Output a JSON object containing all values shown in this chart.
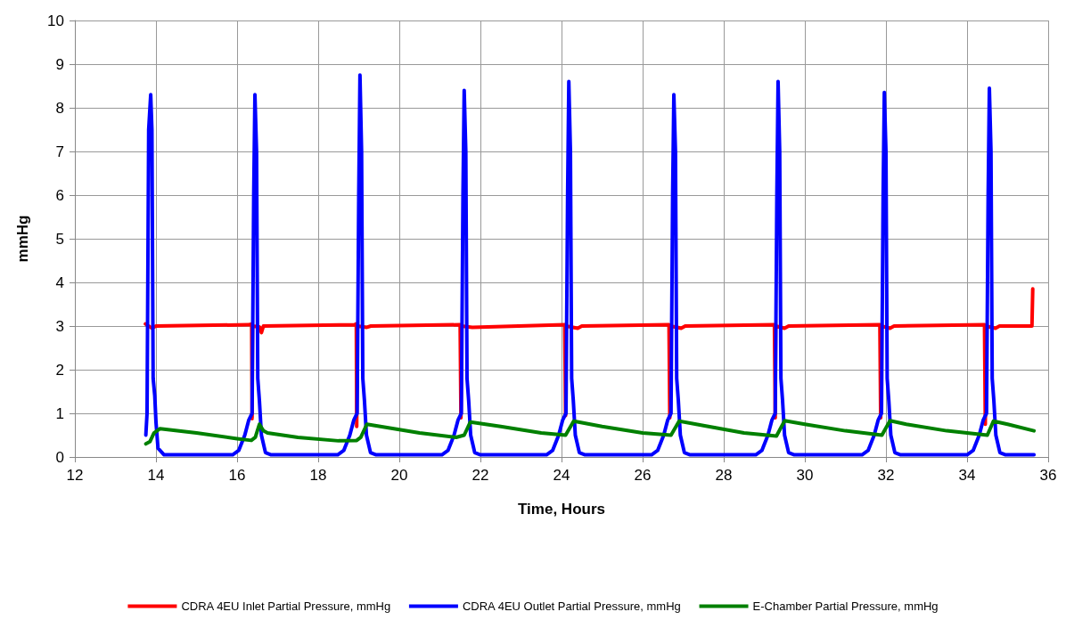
{
  "chart_data": {
    "type": "line",
    "xlabel": "Time, Hours",
    "ylabel": "mmHg",
    "xlim": [
      12,
      36
    ],
    "xticks": [
      12,
      14,
      16,
      18,
      20,
      22,
      24,
      26,
      28,
      30,
      32,
      34,
      36
    ],
    "ylim": [
      0,
      10
    ],
    "yticks": [
      0,
      1,
      2,
      3,
      4,
      5,
      6,
      7,
      8,
      9,
      10
    ],
    "grid": true,
    "legend": "bottom",
    "marker": "none",
    "line_style": "solid",
    "series": [
      {
        "name": "CDRA 4EU Inlet Partial Pressure, mmHg",
        "color": "#ff0000",
        "x": [
          13.74,
          13.9,
          14.0,
          16.3,
          16.36,
          16.37,
          16.38,
          16.55,
          16.6,
          16.65,
          18.9,
          18.94,
          18.95,
          18.96,
          19.2,
          19.3,
          21.5,
          21.52,
          21.53,
          21.8,
          24.08,
          24.1,
          24.11,
          24.4,
          24.5,
          26.65,
          26.67,
          26.68,
          26.95,
          27.05,
          29.25,
          29.27,
          29.28,
          29.5,
          29.6,
          31.85,
          31.87,
          31.88,
          32.1,
          32.2,
          34.43,
          34.45,
          34.46,
          34.7,
          34.8,
          35.6,
          35.62
        ],
        "values": [
          3.05,
          2.95,
          3.0,
          3.03,
          3.05,
          0.88,
          3.0,
          2.98,
          2.85,
          3.0,
          3.03,
          3.05,
          0.7,
          3.0,
          2.97,
          3.0,
          3.03,
          0.9,
          3.0,
          2.97,
          3.03,
          0.95,
          3.0,
          2.95,
          3.0,
          3.03,
          0.9,
          3.0,
          2.95,
          3.0,
          3.03,
          0.9,
          3.0,
          2.95,
          3.0,
          3.03,
          0.9,
          3.0,
          2.95,
          3.0,
          3.03,
          0.75,
          3.0,
          2.95,
          3.0,
          3.0,
          3.85
        ]
      },
      {
        "name": "CDRA 4EU Outlet Partial Pressure, mmHg",
        "color": "#0000ff",
        "x": [
          13.75,
          13.78,
          13.82,
          13.87,
          13.9,
          13.93,
          13.97,
          14.0,
          14.05,
          14.2,
          15.89,
          16.04,
          16.19,
          16.29,
          16.37,
          16.41,
          16.44,
          16.48,
          16.51,
          16.55,
          16.6,
          16.7,
          16.84,
          18.48,
          18.63,
          18.78,
          18.88,
          18.96,
          19.0,
          19.03,
          19.07,
          19.1,
          19.14,
          19.19,
          19.29,
          19.43,
          21.05,
          21.2,
          21.35,
          21.45,
          21.53,
          21.57,
          21.6,
          21.64,
          21.67,
          21.71,
          21.76,
          21.86,
          22.0,
          23.63,
          23.78,
          23.93,
          24.03,
          24.11,
          24.15,
          24.18,
          24.22,
          24.25,
          24.29,
          24.34,
          24.44,
          24.58,
          26.22,
          26.37,
          26.52,
          26.62,
          26.7,
          26.74,
          26.77,
          26.81,
          26.84,
          26.88,
          26.93,
          27.03,
          27.17,
          28.79,
          28.94,
          29.09,
          29.19,
          29.27,
          29.31,
          29.34,
          29.38,
          29.41,
          29.45,
          29.5,
          29.6,
          29.74,
          31.41,
          31.56,
          31.71,
          31.81,
          31.89,
          31.93,
          31.96,
          32.0,
          32.03,
          32.07,
          32.12,
          32.22,
          32.36,
          34.0,
          34.15,
          34.3,
          34.4,
          34.48,
          34.52,
          34.55,
          34.59,
          34.62,
          34.66,
          34.71,
          34.81,
          34.95,
          35.65
        ],
        "values": [
          0.5,
          1.0,
          7.5,
          8.3,
          7.5,
          1.8,
          1.4,
          0.8,
          0.2,
          0.05,
          0.05,
          0.15,
          0.5,
          0.85,
          1.0,
          6.0,
          8.3,
          7.0,
          1.8,
          1.3,
          0.5,
          0.1,
          0.05,
          0.05,
          0.15,
          0.5,
          0.85,
          1.0,
          6.0,
          8.75,
          7.0,
          1.8,
          1.3,
          0.5,
          0.1,
          0.05,
          0.05,
          0.15,
          0.5,
          0.85,
          1.0,
          6.0,
          8.4,
          7.0,
          1.8,
          1.3,
          0.5,
          0.1,
          0.05,
          0.05,
          0.15,
          0.5,
          0.85,
          1.0,
          6.0,
          8.6,
          7.0,
          1.8,
          1.3,
          0.5,
          0.1,
          0.05,
          0.05,
          0.15,
          0.5,
          0.85,
          1.0,
          6.0,
          8.3,
          7.0,
          1.8,
          1.3,
          0.5,
          0.1,
          0.05,
          0.05,
          0.15,
          0.5,
          0.85,
          1.0,
          6.0,
          8.6,
          7.0,
          1.8,
          1.3,
          0.5,
          0.1,
          0.05,
          0.05,
          0.15,
          0.5,
          0.85,
          1.0,
          6.0,
          8.35,
          7.0,
          1.8,
          1.3,
          0.5,
          0.1,
          0.05,
          0.05,
          0.15,
          0.5,
          0.85,
          1.0,
          6.0,
          8.45,
          7.0,
          1.8,
          1.3,
          0.5,
          0.1,
          0.05,
          0.05
        ]
      },
      {
        "name": "E-Chamber Partial Pressure, mmHg",
        "color": "#008000",
        "x": [
          13.75,
          13.85,
          13.95,
          14.1,
          15.0,
          16.0,
          16.35,
          16.45,
          16.55,
          16.65,
          16.75,
          17.5,
          18.5,
          18.95,
          19.05,
          19.2,
          19.4,
          20.5,
          21.4,
          21.6,
          21.75,
          22.5,
          23.5,
          24.1,
          24.3,
          25.0,
          26.0,
          26.7,
          26.9,
          27.5,
          28.5,
          29.3,
          29.5,
          30.0,
          31.0,
          31.9,
          32.1,
          32.5,
          33.5,
          34.5,
          34.65,
          35.0,
          35.65
        ],
        "values": [
          0.3,
          0.35,
          0.55,
          0.65,
          0.55,
          0.42,
          0.38,
          0.45,
          0.75,
          0.6,
          0.55,
          0.45,
          0.37,
          0.38,
          0.45,
          0.75,
          0.72,
          0.55,
          0.45,
          0.5,
          0.8,
          0.7,
          0.55,
          0.5,
          0.82,
          0.7,
          0.55,
          0.5,
          0.82,
          0.72,
          0.55,
          0.48,
          0.83,
          0.75,
          0.6,
          0.5,
          0.83,
          0.75,
          0.6,
          0.5,
          0.82,
          0.75,
          0.6
        ]
      }
    ]
  }
}
